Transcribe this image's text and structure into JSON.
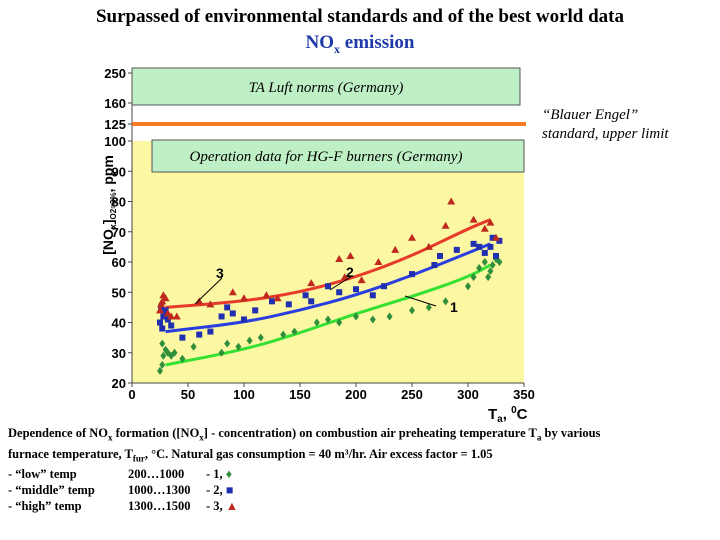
{
  "title": "Surpassed of environmental standards and of the best world data",
  "subtitle": {
    "main": "NO",
    "sub": "x",
    "rest": " emission"
  },
  "annotations": {
    "ta_luft": "TA Luft norms (Germany)",
    "operation": "Operation data for HG-F burners (Germany)",
    "blauer_line1": "“Blauer Engel”",
    "blauer_line2": "standard, upper limit",
    "curve1": "1",
    "curve2": "2",
    "curve3": "3"
  },
  "axes": {
    "ylabel_main": "[NO",
    "ylabel_sub1": "x",
    "ylabel_mid": "]",
    "ylabel_sub2": "O2=3%",
    "ylabel_end": ", ppm",
    "xlabel_main": "T",
    "xlabel_sub": "a",
    "xlabel_end": ", ",
    "xlabel_sup": "0",
    "xlabel_unit": "C"
  },
  "caption": {
    "line1_a": "Dependence of NO",
    "line1_b": "x",
    "line1_c": " formation ([NO",
    "line1_d": "x",
    "line1_e": "] - concentration) on combustion air preheating temperature T",
    "line1_f": "a",
    "line1_g": " by various",
    "line2_a": "furnace temperature, T",
    "line2_b": "fur",
    "line2_c": ", °C. Natural gas consumption = 40 m³/hr. Air excess factor  = 1.05",
    "legend": [
      {
        "label": "- “low” temp",
        "range": "200…1000",
        "num": "- 1,",
        "marker": "♦"
      },
      {
        "label": "- “middle” temp",
        "range": "1000…1300",
        "num": "- 2,",
        "marker": "■"
      },
      {
        "label": "- “high” temp",
        "range": "1300…1500",
        "num": "- 3,",
        "marker": "▲"
      }
    ]
  },
  "chart_data": {
    "type": "scatter",
    "x_ticks": [
      0,
      50,
      100,
      150,
      200,
      250,
      300,
      350
    ],
    "y_ticks": [
      20,
      30,
      40,
      50,
      60,
      70,
      80,
      90,
      100,
      125,
      160,
      250
    ],
    "xlim": [
      0,
      350
    ],
    "ylim": [
      20,
      250
    ],
    "colors": {
      "plot_bg": "#fbf7a2",
      "box_fill": "#bfefc5",
      "orange_line": "#f57c22",
      "low": "#2f8f3a",
      "middle": "#1f2fb0",
      "high": "#c0281e",
      "curve1": "#33e033",
      "curve2": "#2a3ee0",
      "curve3": "#e83a2a"
    },
    "reference_lines": [
      {
        "name": "“Blauer Engel” standard, upper limit",
        "y": 125
      }
    ],
    "curves": [
      {
        "label": "1",
        "points": [
          [
            30,
            26
          ],
          [
            100,
            31
          ],
          [
            150,
            36.5
          ],
          [
            200,
            43
          ],
          [
            250,
            48.5
          ],
          [
            300,
            55
          ],
          [
            320,
            59
          ]
        ]
      },
      {
        "label": "2",
        "points": [
          [
            30,
            37
          ],
          [
            100,
            40
          ],
          [
            150,
            44
          ],
          [
            200,
            49
          ],
          [
            250,
            55.5
          ],
          [
            300,
            63
          ],
          [
            320,
            66
          ]
        ]
      },
      {
        "label": "3",
        "points": [
          [
            30,
            45
          ],
          [
            100,
            47
          ],
          [
            150,
            50
          ],
          [
            200,
            55
          ],
          [
            250,
            62
          ],
          [
            300,
            71
          ],
          [
            320,
            74
          ]
        ]
      }
    ],
    "series": [
      {
        "name": "1",
        "marker": "diamond",
        "points": [
          [
            25,
            24
          ],
          [
            27,
            26
          ],
          [
            28,
            29
          ],
          [
            30,
            31
          ],
          [
            27,
            33
          ],
          [
            32,
            30
          ],
          [
            35,
            29
          ],
          [
            38,
            30
          ],
          [
            45,
            28
          ],
          [
            55,
            32
          ],
          [
            80,
            30
          ],
          [
            85,
            33
          ],
          [
            95,
            32
          ],
          [
            105,
            34
          ],
          [
            115,
            35
          ],
          [
            135,
            36
          ],
          [
            145,
            37
          ],
          [
            165,
            40
          ],
          [
            175,
            41
          ],
          [
            185,
            40
          ],
          [
            200,
            42
          ],
          [
            215,
            41
          ],
          [
            230,
            42
          ],
          [
            250,
            44
          ],
          [
            265,
            45
          ],
          [
            280,
            47
          ],
          [
            300,
            52
          ],
          [
            305,
            55
          ],
          [
            310,
            58
          ],
          [
            315,
            60
          ],
          [
            318,
            55
          ],
          [
            320,
            57
          ],
          [
            325,
            61
          ],
          [
            322,
            59
          ],
          [
            328,
            60
          ]
        ]
      },
      {
        "name": "2",
        "marker": "square",
        "points": [
          [
            25,
            40
          ],
          [
            27,
            38
          ],
          [
            28,
            42
          ],
          [
            30,
            44
          ],
          [
            32,
            41
          ],
          [
            35,
            39
          ],
          [
            26,
            45
          ],
          [
            45,
            35
          ],
          [
            60,
            36
          ],
          [
            70,
            37
          ],
          [
            80,
            42
          ],
          [
            85,
            45
          ],
          [
            90,
            43
          ],
          [
            100,
            41
          ],
          [
            110,
            44
          ],
          [
            125,
            47
          ],
          [
            140,
            46
          ],
          [
            155,
            49
          ],
          [
            160,
            47
          ],
          [
            175,
            52
          ],
          [
            185,
            50
          ],
          [
            200,
            51
          ],
          [
            215,
            49
          ],
          [
            225,
            52
          ],
          [
            250,
            56
          ],
          [
            270,
            59
          ],
          [
            275,
            62
          ],
          [
            290,
            64
          ],
          [
            305,
            66
          ],
          [
            310,
            65
          ],
          [
            315,
            63
          ],
          [
            320,
            65
          ],
          [
            322,
            68
          ],
          [
            325,
            62
          ],
          [
            328,
            67
          ]
        ]
      },
      {
        "name": "3",
        "marker": "triangle",
        "points": [
          [
            25,
            44
          ],
          [
            27,
            47
          ],
          [
            28,
            49
          ],
          [
            30,
            48
          ],
          [
            32,
            43
          ],
          [
            35,
            42
          ],
          [
            26,
            46
          ],
          [
            40,
            42
          ],
          [
            60,
            47
          ],
          [
            70,
            46
          ],
          [
            90,
            50
          ],
          [
            100,
            48
          ],
          [
            120,
            49
          ],
          [
            130,
            48
          ],
          [
            160,
            53
          ],
          [
            185,
            61
          ],
          [
            190,
            55
          ],
          [
            195,
            62
          ],
          [
            205,
            54
          ],
          [
            220,
            60
          ],
          [
            235,
            64
          ],
          [
            250,
            68
          ],
          [
            265,
            65
          ],
          [
            280,
            72
          ],
          [
            285,
            80
          ],
          [
            305,
            74
          ],
          [
            315,
            71
          ],
          [
            320,
            73
          ],
          [
            325,
            68
          ]
        ]
      }
    ]
  }
}
